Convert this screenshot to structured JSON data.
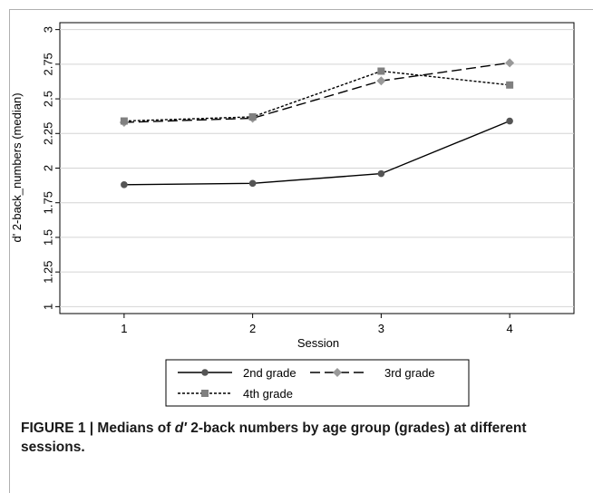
{
  "chart_data": {
    "type": "line",
    "xlabel": "Session",
    "ylabel": "d' 2-back_numbers (median)",
    "x": [
      1,
      2,
      3,
      4
    ],
    "xticks": [
      "1",
      "2",
      "3",
      "4"
    ],
    "xlim": [
      0.5,
      4.5
    ],
    "ylim": [
      0.95,
      3.05
    ],
    "yticks": [
      "1",
      "1.25",
      "1.5",
      "1.75",
      "2",
      "2.25",
      "2.5",
      "2.75",
      "3"
    ],
    "grid": "horizontal",
    "legend_position": "bottom",
    "series": [
      {
        "name": "2nd grade",
        "values": [
          1.88,
          1.89,
          1.96,
          2.34
        ],
        "color": "#555555",
        "marker": "circle",
        "dash": "solid"
      },
      {
        "name": "3rd grade",
        "values": [
          2.33,
          2.36,
          2.63,
          2.76
        ],
        "color": "#999999",
        "marker": "diamond",
        "dash": "longdash"
      },
      {
        "name": "4th grade",
        "values": [
          2.34,
          2.37,
          2.7,
          2.6
        ],
        "color": "#808080",
        "marker": "square",
        "dash": "shortdash"
      }
    ]
  },
  "caption": {
    "prefix": "FIGURE 1 | Medians of ",
    "italic": "d′",
    "suffix": " 2-back numbers by age group (grades) at different sessions."
  }
}
